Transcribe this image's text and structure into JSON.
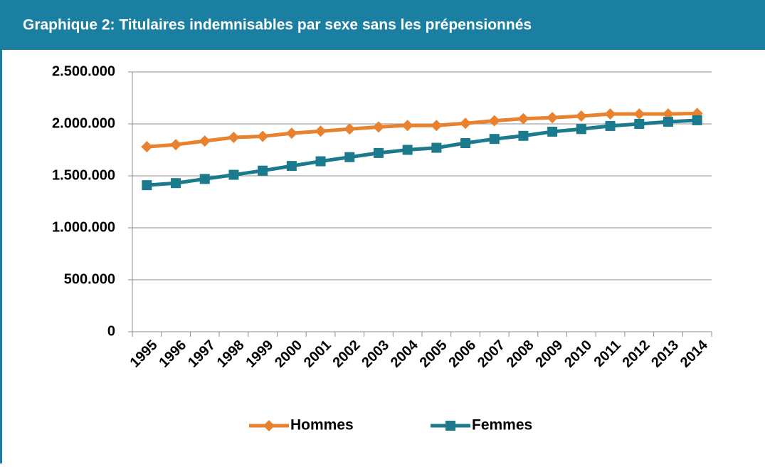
{
  "chart_data": {
    "type": "line",
    "title": "Graphique 2:  Titulaires indemnisables par sexe sans les  prépensionnés",
    "categories": [
      "1995",
      "1996",
      "1997",
      "1998",
      "1999",
      "2000",
      "2001",
      "2002",
      "2003",
      "2004",
      "2005",
      "2006",
      "2007",
      "2008",
      "2009",
      "2010",
      "2011",
      "2012",
      "2013",
      "2014"
    ],
    "series": [
      {
        "name": "Hommes",
        "color": "#e8822e",
        "marker": "diamond",
        "values": [
          1780000,
          1800000,
          1835000,
          1870000,
          1880000,
          1910000,
          1930000,
          1950000,
          1970000,
          1985000,
          1985000,
          2005000,
          2030000,
          2050000,
          2060000,
          2075000,
          2095000,
          2095000,
          2095000,
          2100000
        ]
      },
      {
        "name": "Femmes",
        "color": "#1b7a8c",
        "marker": "square",
        "values": [
          1410000,
          1430000,
          1470000,
          1510000,
          1550000,
          1595000,
          1640000,
          1680000,
          1720000,
          1750000,
          1770000,
          1815000,
          1855000,
          1885000,
          1925000,
          1950000,
          1980000,
          2000000,
          2020000,
          2035000
        ]
      }
    ],
    "ylim": [
      0,
      2500000
    ],
    "yticks": [
      0,
      {
        "value": 500000,
        "label": "500.000"
      },
      {
        "value": 1000000,
        "label": "1.000.000"
      },
      {
        "value": 1500000,
        "label": "1.500.000"
      },
      {
        "value": 2000000,
        "label": "2.000.000"
      },
      {
        "value": 2500000,
        "label": "2.500.000"
      }
    ],
    "grid": true,
    "legend": "bottom"
  }
}
